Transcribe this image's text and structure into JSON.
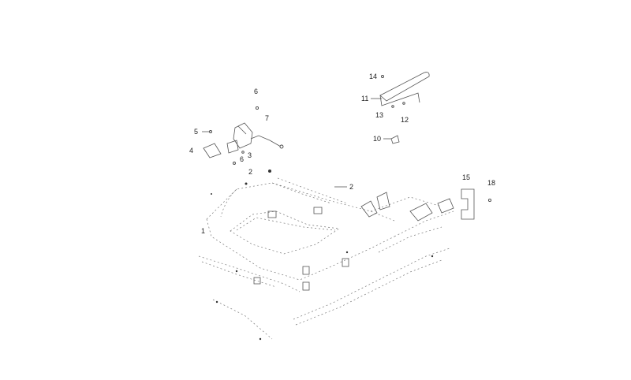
{
  "callouts": {
    "c1": "1",
    "c2a": "2",
    "c2b": "2",
    "c3": "3",
    "c4": "4",
    "c5": "5",
    "c6a": "6",
    "c6b": "6",
    "c7": "7",
    "c10": "10",
    "c11": "11",
    "c12": "12",
    "c13": "13",
    "c14": "14",
    "c15": "15",
    "c18": "18"
  },
  "colors": {
    "line": "#555555",
    "text": "#222222",
    "background": "#ffffff"
  }
}
